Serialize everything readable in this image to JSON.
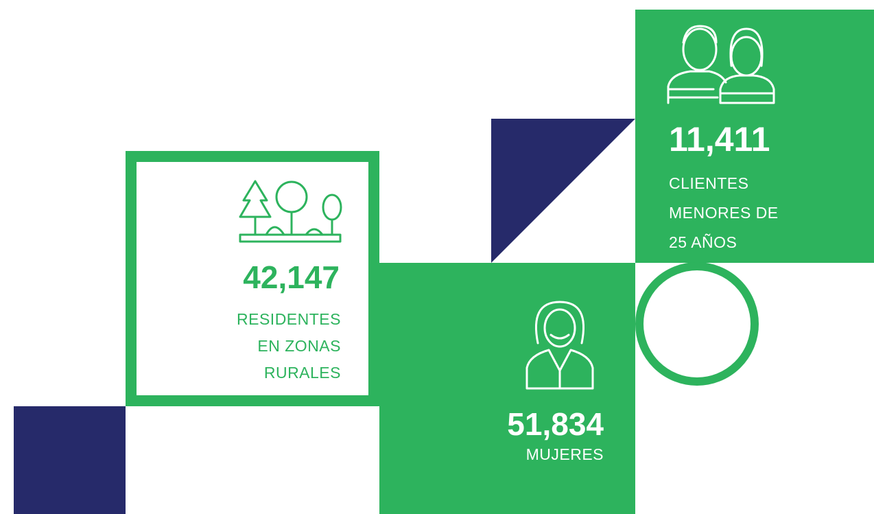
{
  "stats": [
    {
      "value": "42,147",
      "label_lines": [
        "RESIDENTES",
        "EN ZONAS",
        "RURALES"
      ]
    },
    {
      "value": "51,834",
      "label_lines": [
        "MUJERES"
      ]
    },
    {
      "value": "11,411",
      "label_lines": [
        "CLIENTES",
        "MENORES DE",
        "25 AÑOS"
      ]
    }
  ]
}
